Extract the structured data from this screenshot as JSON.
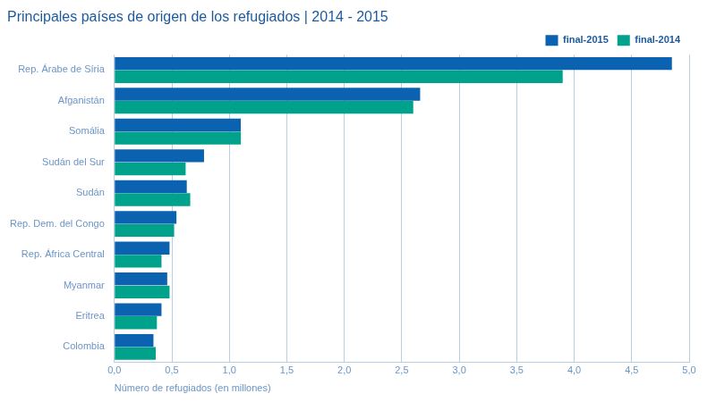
{
  "chart_data": {
    "type": "bar",
    "orientation": "horizontal",
    "title": "Principales países de origen de los refugiados | 2014 - 2015",
    "x_label": "Número de refugiados (en millones)",
    "categories": [
      "Rep. Árabe de Síria",
      "Afganistán",
      "Somália",
      "Sudán del Sur",
      "Sudán",
      "Rep. Dem. del Congo",
      "Rep. África Central",
      "Myanmar",
      "Eritrea",
      "Colombia"
    ],
    "series": [
      {
        "name": "final-2015",
        "color": "#0b62b0",
        "values": [
          4.85,
          2.66,
          1.1,
          0.78,
          0.63,
          0.54,
          0.48,
          0.46,
          0.41,
          0.34
        ]
      },
      {
        "name": "final-2014",
        "color": "#00a28c",
        "values": [
          3.9,
          2.6,
          1.1,
          0.62,
          0.66,
          0.52,
          0.41,
          0.48,
          0.37,
          0.36
        ]
      }
    ],
    "xlim": [
      0,
      5
    ],
    "xticks": [
      {
        "value": 0,
        "label": "0,0"
      },
      {
        "value": 0.5,
        "label": "0,5"
      },
      {
        "value": 1,
        "label": "1,0"
      },
      {
        "value": 1.5,
        "label": "1,5"
      },
      {
        "value": 2,
        "label": "2,0"
      },
      {
        "value": 2.5,
        "label": "2,5"
      },
      {
        "value": 3,
        "label": "3,0"
      },
      {
        "value": 3.5,
        "label": "3,5"
      },
      {
        "value": 4,
        "label": "4,0"
      },
      {
        "value": 4.5,
        "label": "4,5"
      },
      {
        "value": 5,
        "label": "5,0"
      }
    ],
    "grid": true,
    "legend": "top-right"
  }
}
